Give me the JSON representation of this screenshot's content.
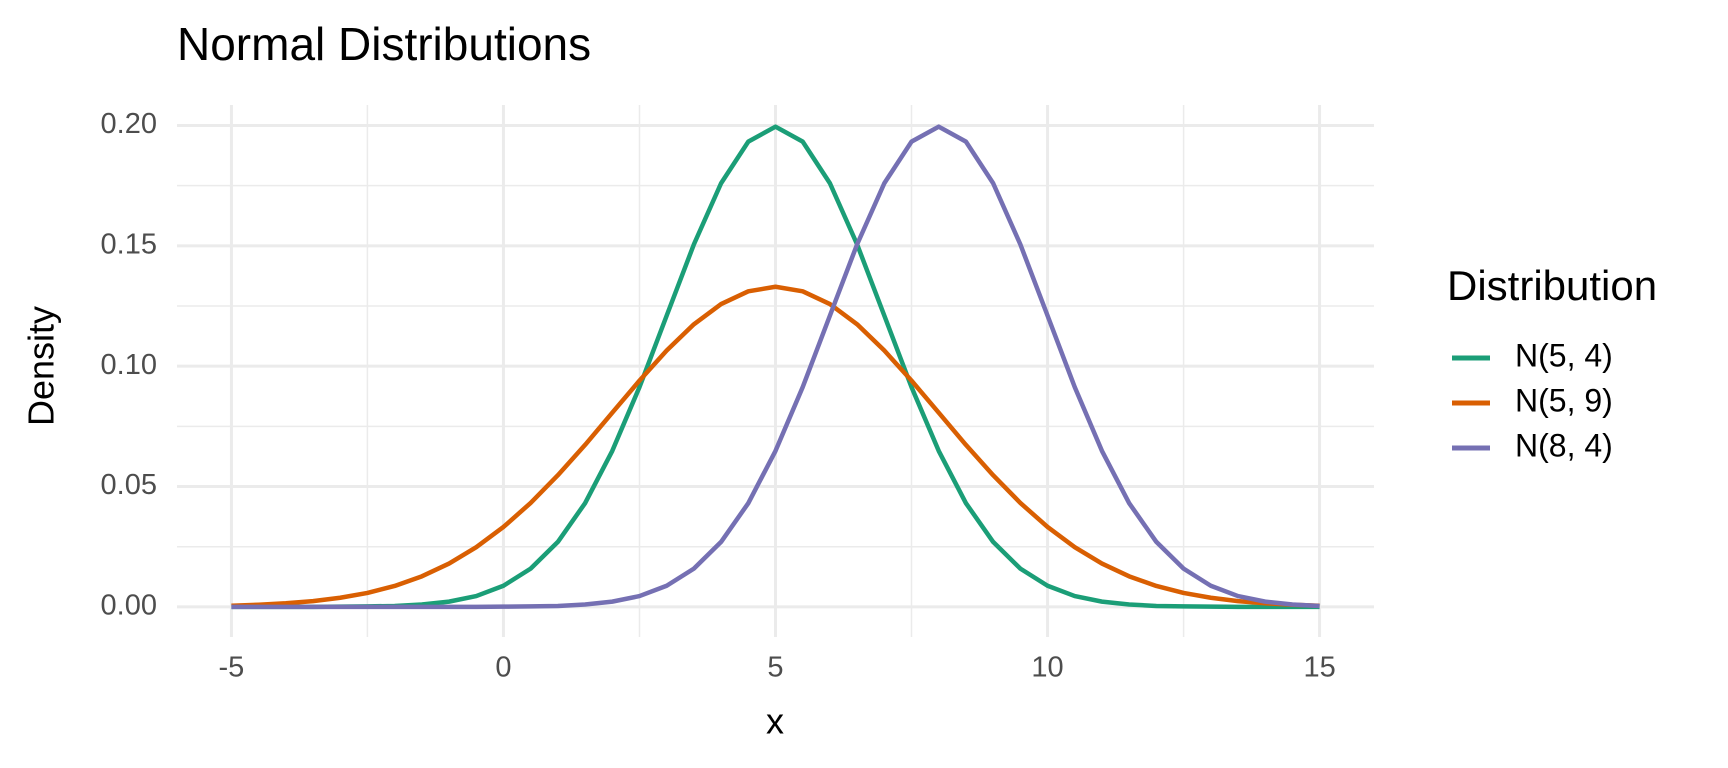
{
  "chart_data": {
    "type": "line",
    "title": "Normal Distributions",
    "x_label": "x",
    "y_label": "Density",
    "x": [
      -5,
      -4.5,
      -4,
      -3.5,
      -3,
      -2.5,
      -2,
      -1.5,
      -1,
      -0.5,
      0,
      0.5,
      1,
      1.5,
      2,
      2.5,
      3,
      3.5,
      4,
      4.5,
      5,
      5.5,
      6,
      6.5,
      7,
      7.5,
      8,
      8.5,
      9,
      9.5,
      10,
      10.5,
      11,
      11.5,
      12,
      12.5,
      13,
      13.5,
      14,
      14.5,
      15
    ],
    "series": [
      {
        "name": "N(5, 4)",
        "color": "#1b9e77",
        "values": [
          0,
          0,
          0,
          0,
          0.0001,
          0.0002,
          0.0004,
          0.001,
          0.0022,
          0.0045,
          0.0088,
          0.0159,
          0.027,
          0.0431,
          0.0648,
          0.0913,
          0.121,
          0.1506,
          0.176,
          0.1933,
          0.1995,
          0.1933,
          0.176,
          0.1506,
          0.121,
          0.0913,
          0.0648,
          0.0431,
          0.027,
          0.0159,
          0.0088,
          0.0045,
          0.0022,
          0.001,
          0.0004,
          0.0002,
          0.0001,
          0,
          0,
          0,
          0
        ]
      },
      {
        "name": "N(5, 9)",
        "color": "#d95f02",
        "values": [
          0.0005,
          0.0009,
          0.0015,
          0.0024,
          0.0038,
          0.0058,
          0.0087,
          0.0127,
          0.018,
          0.0248,
          0.0332,
          0.0432,
          0.0547,
          0.0673,
          0.0807,
          0.094,
          0.1065,
          0.1174,
          0.1258,
          0.1311,
          0.133,
          0.1311,
          0.1258,
          0.1174,
          0.1065,
          0.094,
          0.0807,
          0.0673,
          0.0547,
          0.0432,
          0.0332,
          0.0248,
          0.018,
          0.0127,
          0.0087,
          0.0058,
          0.0038,
          0.0024,
          0.0015,
          0.0009,
          0.0005
        ]
      },
      {
        "name": "N(8, 4)",
        "color": "#7570b3",
        "values": [
          0,
          0,
          0,
          0,
          0,
          0,
          0,
          0,
          0,
          0,
          0.0001,
          0.0002,
          0.0004,
          0.001,
          0.0022,
          0.0045,
          0.0088,
          0.0159,
          0.027,
          0.0431,
          0.0648,
          0.0913,
          0.121,
          0.1506,
          0.176,
          0.1933,
          0.1995,
          0.1933,
          0.176,
          0.1506,
          0.121,
          0.0913,
          0.0648,
          0.0431,
          0.027,
          0.0159,
          0.0088,
          0.0045,
          0.0022,
          0.001,
          0.0004
        ]
      }
    ],
    "legend_title": "Distribution",
    "legend": "right",
    "xlim": [
      -6,
      16
    ],
    "xticks": [
      -5,
      0,
      5,
      10,
      15
    ],
    "x_minor_ticks": [
      -2.5,
      2.5,
      7.5,
      12.5
    ],
    "ylim": [
      -0.0125,
      0.2085
    ],
    "yticks": [
      {
        "value": 0,
        "label": "0.00"
      },
      {
        "value": 0.05,
        "label": "0.05"
      },
      {
        "value": 0.1,
        "label": "0.10"
      },
      {
        "value": 0.15,
        "label": "0.15"
      },
      {
        "value": 0.2,
        "label": "0.20"
      }
    ],
    "y_minor_ticks": [
      0.025,
      0.075,
      0.125,
      0.175
    ],
    "grid": true
  }
}
